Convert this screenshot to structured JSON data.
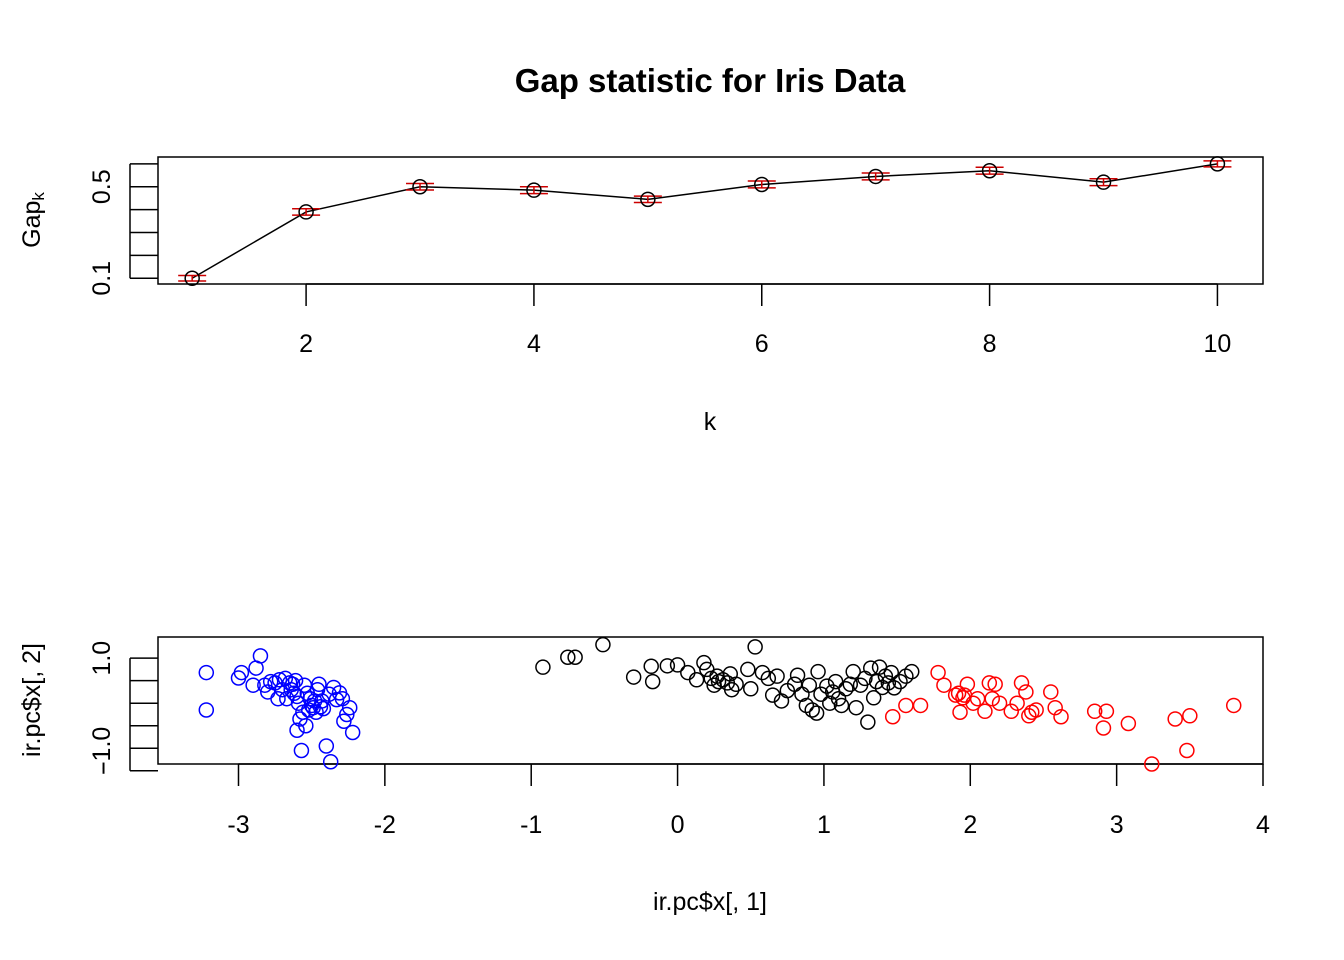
{
  "chart_data": [
    {
      "type": "line",
      "title": "Gap statistic for Iris Data",
      "xlabel": "k",
      "ylabel": "Gap",
      "ylabel_subscript": "k",
      "xlim": [
        0.7,
        10.4
      ],
      "ylim": [
        0.075,
        0.63
      ],
      "xticks": [
        2,
        4,
        6,
        8,
        10
      ],
      "yticks": [
        0.1,
        0.2,
        0.3,
        0.4,
        0.5,
        0.6
      ],
      "ytick_labels": [
        "0.1",
        "",
        "",
        "",
        "0.5",
        ""
      ],
      "colors": {
        "line": "#000000",
        "errorbar": "#cc0000"
      },
      "series": [
        {
          "x": [
            1,
            2,
            3,
            4,
            5,
            6,
            7,
            8,
            9,
            10
          ],
          "values": [
            0.1,
            0.39,
            0.5,
            0.485,
            0.445,
            0.51,
            0.545,
            0.57,
            0.52,
            0.6
          ],
          "se": [
            0.012,
            0.014,
            0.014,
            0.015,
            0.014,
            0.015,
            0.015,
            0.015,
            0.015,
            0.013
          ]
        }
      ]
    },
    {
      "type": "scatter",
      "xlabel": "ir.pc$x[, 1]",
      "ylabel": "ir.pc$x[, 2]",
      "xlim": [
        -3.55,
        4.0
      ],
      "ylim": [
        -1.35,
        1.47
      ],
      "xticks": [
        -3,
        -2,
        -1,
        0,
        1,
        2,
        3,
        4
      ],
      "yticks": [
        -1.5,
        -1.0,
        -0.5,
        0.0,
        0.5,
        1.0
      ],
      "ytick_labels": [
        "-",
        "-1.0",
        "",
        "",
        "",
        "1.0"
      ],
      "series": [
        {
          "color": "#0000ff",
          "points": [
            [
              -3.22,
              0.68
            ],
            [
              -3.22,
              -0.15
            ],
            [
              -3.0,
              0.56
            ],
            [
              -2.98,
              0.68
            ],
            [
              -2.88,
              0.78
            ],
            [
              -2.9,
              0.4
            ],
            [
              -2.85,
              1.05
            ],
            [
              -2.82,
              0.4
            ],
            [
              -2.8,
              0.25
            ],
            [
              -2.78,
              0.48
            ],
            [
              -2.75,
              0.45
            ],
            [
              -2.73,
              0.1
            ],
            [
              -2.72,
              0.52
            ],
            [
              -2.7,
              0.3
            ],
            [
              -2.68,
              0.55
            ],
            [
              -2.67,
              0.1
            ],
            [
              -2.65,
              0.45
            ],
            [
              -2.64,
              0.3
            ],
            [
              -2.63,
              0.42
            ],
            [
              -2.62,
              0.22
            ],
            [
              -2.61,
              0.5
            ],
            [
              -2.6,
              0.15
            ],
            [
              -2.6,
              -0.6
            ],
            [
              -2.59,
              0.0
            ],
            [
              -2.58,
              -0.35
            ],
            [
              -2.57,
              -1.05
            ],
            [
              -2.56,
              -0.2
            ],
            [
              -2.55,
              0.4
            ],
            [
              -2.54,
              -0.5
            ],
            [
              -2.53,
              0.22
            ],
            [
              -2.52,
              -0.15
            ],
            [
              -2.51,
              0.1
            ],
            [
              -2.5,
              -0.05
            ],
            [
              -2.49,
              -0.1
            ],
            [
              -2.48,
              0.05
            ],
            [
              -2.47,
              -0.2
            ],
            [
              -2.46,
              0.3
            ],
            [
              -2.45,
              0.42
            ],
            [
              -2.44,
              -0.08
            ],
            [
              -2.43,
              0.05
            ],
            [
              -2.42,
              -0.12
            ],
            [
              -2.4,
              -0.95
            ],
            [
              -2.38,
              0.2
            ],
            [
              -2.37,
              -1.3
            ],
            [
              -2.35,
              0.35
            ],
            [
              -2.33,
              0.08
            ],
            [
              -2.31,
              0.23
            ],
            [
              -2.29,
              0.1
            ],
            [
              -2.28,
              -0.4
            ],
            [
              -2.26,
              -0.25
            ],
            [
              -2.24,
              -0.1
            ],
            [
              -2.22,
              -0.65
            ]
          ]
        },
        {
          "color": "#000000",
          "points": [
            [
              -0.92,
              0.8
            ],
            [
              -0.75,
              1.02
            ],
            [
              -0.7,
              1.02
            ],
            [
              -0.51,
              1.3
            ],
            [
              -0.3,
              0.58
            ],
            [
              -0.18,
              0.82
            ],
            [
              -0.17,
              0.48
            ],
            [
              -0.07,
              0.83
            ],
            [
              0.0,
              0.85
            ],
            [
              0.07,
              0.68
            ],
            [
              0.13,
              0.52
            ],
            [
              0.18,
              0.9
            ],
            [
              0.2,
              0.75
            ],
            [
              0.23,
              0.55
            ],
            [
              0.25,
              0.4
            ],
            [
              0.27,
              0.6
            ],
            [
              0.28,
              0.48
            ],
            [
              0.31,
              0.52
            ],
            [
              0.34,
              0.45
            ],
            [
              0.36,
              0.65
            ],
            [
              0.37,
              0.3
            ],
            [
              0.4,
              0.42
            ],
            [
              0.48,
              0.75
            ],
            [
              0.5,
              0.32
            ],
            [
              0.53,
              1.25
            ],
            [
              0.58,
              0.68
            ],
            [
              0.62,
              0.55
            ],
            [
              0.65,
              0.18
            ],
            [
              0.68,
              0.6
            ],
            [
              0.71,
              0.05
            ],
            [
              0.75,
              0.28
            ],
            [
              0.8,
              0.42
            ],
            [
              0.82,
              0.62
            ],
            [
              0.85,
              0.2
            ],
            [
              0.88,
              -0.05
            ],
            [
              0.9,
              0.4
            ],
            [
              0.92,
              -0.15
            ],
            [
              0.95,
              -0.22
            ],
            [
              0.96,
              0.7
            ],
            [
              0.98,
              0.2
            ],
            [
              1.02,
              0.38
            ],
            [
              1.04,
              0.0
            ],
            [
              1.06,
              0.25
            ],
            [
              1.08,
              0.48
            ],
            [
              1.1,
              0.1
            ],
            [
              1.12,
              -0.05
            ],
            [
              1.15,
              0.32
            ],
            [
              1.18,
              0.42
            ],
            [
              1.2,
              0.7
            ],
            [
              1.22,
              -0.1
            ],
            [
              1.25,
              0.4
            ],
            [
              1.28,
              0.55
            ],
            [
              1.3,
              -0.42
            ],
            [
              1.32,
              0.78
            ],
            [
              1.34,
              0.12
            ],
            [
              1.36,
              0.48
            ],
            [
              1.38,
              0.8
            ],
            [
              1.4,
              0.35
            ],
            [
              1.42,
              0.6
            ],
            [
              1.44,
              0.45
            ],
            [
              1.46,
              0.68
            ],
            [
              1.48,
              0.34
            ],
            [
              1.52,
              0.48
            ],
            [
              1.56,
              0.6
            ],
            [
              1.6,
              0.7
            ]
          ]
        },
        {
          "color": "#ff0000",
          "points": [
            [
              1.47,
              -0.3
            ],
            [
              1.56,
              -0.05
            ],
            [
              1.66,
              -0.05
            ],
            [
              1.78,
              0.68
            ],
            [
              1.82,
              0.4
            ],
            [
              1.9,
              0.18
            ],
            [
              1.92,
              0.22
            ],
            [
              1.93,
              -0.2
            ],
            [
              1.95,
              0.12
            ],
            [
              1.96,
              0.18
            ],
            [
              1.98,
              0.42
            ],
            [
              2.02,
              0.0
            ],
            [
              2.05,
              0.1
            ],
            [
              2.1,
              -0.18
            ],
            [
              2.13,
              0.45
            ],
            [
              2.15,
              0.1
            ],
            [
              2.17,
              0.42
            ],
            [
              2.2,
              0.0
            ],
            [
              2.28,
              -0.18
            ],
            [
              2.32,
              0.0
            ],
            [
              2.35,
              0.45
            ],
            [
              2.38,
              0.25
            ],
            [
              2.4,
              -0.28
            ],
            [
              2.42,
              -0.2
            ],
            [
              2.45,
              -0.15
            ],
            [
              2.55,
              0.25
            ],
            [
              2.58,
              -0.1
            ],
            [
              2.62,
              -0.3
            ],
            [
              2.85,
              -0.18
            ],
            [
              2.91,
              -0.55
            ],
            [
              2.93,
              -0.18
            ],
            [
              3.08,
              -0.45
            ],
            [
              3.24,
              -1.35
            ],
            [
              3.4,
              -0.35
            ],
            [
              3.48,
              -1.05
            ],
            [
              3.5,
              -0.28
            ],
            [
              3.8,
              -0.05
            ]
          ]
        }
      ]
    }
  ]
}
